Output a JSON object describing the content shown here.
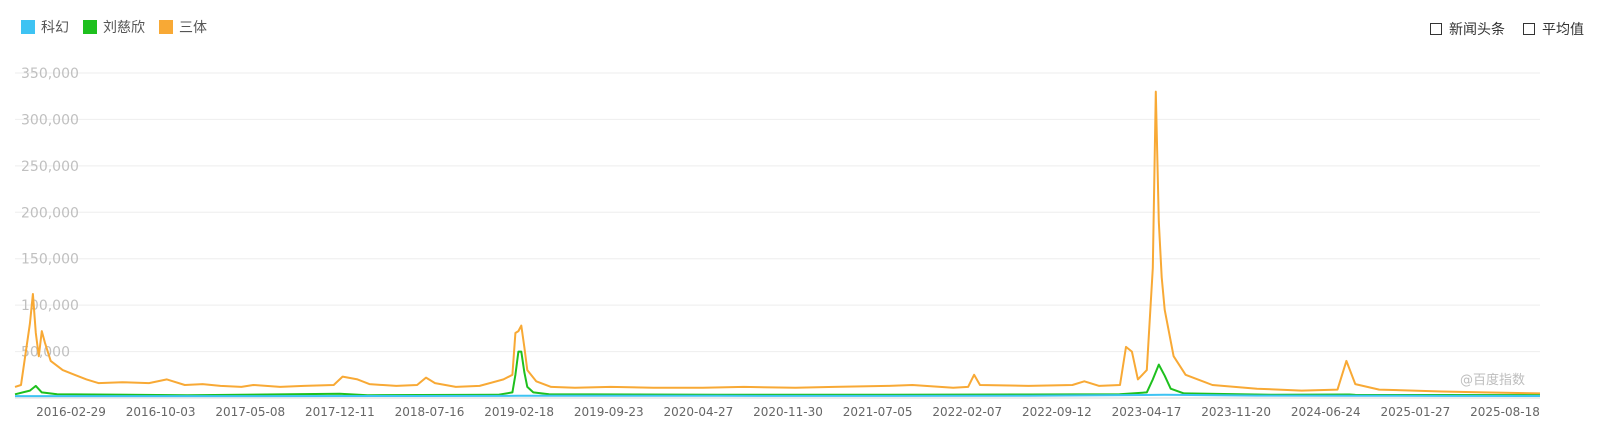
{
  "legend": [
    {
      "label": "科幻",
      "color": "#3ec3f3"
    },
    {
      "label": "刘慈欣",
      "color": "#1ec01e"
    },
    {
      "label": "三体",
      "color": "#f8a935"
    }
  ],
  "toggles": [
    {
      "label": "新闻头条",
      "checked": false
    },
    {
      "label": "平均值",
      "checked": false
    }
  ],
  "watermark": "@百度指数",
  "chart_data": {
    "type": "line",
    "title": "",
    "xlabel": "",
    "ylabel": "",
    "ylim": [
      0,
      350000
    ],
    "yticks": [
      0,
      50000,
      100000,
      150000,
      200000,
      250000,
      300000,
      350000
    ],
    "ytick_labels": [
      "",
      "50,000",
      "100,000",
      "150,000",
      "200,000",
      "250,000",
      "300,000",
      "350,000"
    ],
    "x_range": [
      "2015-11-23",
      "2025-09-15"
    ],
    "xtick_labels": [
      "2016-02-29",
      "2016-10-03",
      "2017-05-08",
      "2017-12-11",
      "2018-07-16",
      "2019-02-18",
      "2019-09-23",
      "2020-04-27",
      "2020-11-30",
      "2021-07-05",
      "2022-02-07",
      "2022-09-12",
      "2023-04-17",
      "2023-11-20",
      "2024-06-24",
      "2025-01-27",
      "2025-08-18"
    ],
    "grid": "horizontal",
    "legend_position": "top-left",
    "series": [
      {
        "name": "科幻",
        "color": "#3ec3f3",
        "points": [
          [
            "2015-11-23",
            2000
          ],
          [
            "2016-06-01",
            2000
          ],
          [
            "2017-06-01",
            2100
          ],
          [
            "2018-06-01",
            2200
          ],
          [
            "2019-02-18",
            2400
          ],
          [
            "2019-09-23",
            2500
          ],
          [
            "2020-06-01",
            2400
          ],
          [
            "2021-06-01",
            2300
          ],
          [
            "2022-06-01",
            2400
          ],
          [
            "2023-04-17",
            3500
          ],
          [
            "2023-11-20",
            2600
          ],
          [
            "2024-06-24",
            2500
          ],
          [
            "2025-01-27",
            2300
          ],
          [
            "2025-09-15",
            2200
          ]
        ]
      },
      {
        "name": "刘慈欣",
        "color": "#1ec01e",
        "points": [
          [
            "2015-11-23",
            4000
          ],
          [
            "2015-12-28",
            8000
          ],
          [
            "2016-01-11",
            13000
          ],
          [
            "2016-01-25",
            6000
          ],
          [
            "2016-03-01",
            4000
          ],
          [
            "2017-01-01",
            3000
          ],
          [
            "2017-12-25",
            4500
          ],
          [
            "2018-03-01",
            3000
          ],
          [
            "2019-01-01",
            3500
          ],
          [
            "2019-02-04",
            6000
          ],
          [
            "2019-02-11",
            25000
          ],
          [
            "2019-02-18",
            50000
          ],
          [
            "2019-02-25",
            50000
          ],
          [
            "2019-03-04",
            28000
          ],
          [
            "2019-03-11",
            12000
          ],
          [
            "2019-03-25",
            6000
          ],
          [
            "2019-05-01",
            4000
          ],
          [
            "2020-06-01",
            3500
          ],
          [
            "2021-06-01",
            3500
          ],
          [
            "2022-06-01",
            3800
          ],
          [
            "2023-01-01",
            4000
          ],
          [
            "2023-03-06",
            6000
          ],
          [
            "2023-03-20",
            20000
          ],
          [
            "2023-04-03",
            36000
          ],
          [
            "2023-04-17",
            24000
          ],
          [
            "2023-05-01",
            10000
          ],
          [
            "2023-06-01",
            5000
          ],
          [
            "2024-01-01",
            3500
          ],
          [
            "2024-06-24",
            3800
          ],
          [
            "2024-07-08",
            3300
          ],
          [
            "2025-01-27",
            3200
          ],
          [
            "2025-09-15",
            3000
          ]
        ]
      },
      {
        "name": "三体",
        "color": "#f8a935",
        "points": [
          [
            "2015-11-23",
            12000
          ],
          [
            "2015-12-07",
            14000
          ],
          [
            "2015-12-28",
            80000
          ],
          [
            "2016-01-04",
            112000
          ],
          [
            "2016-01-11",
            70000
          ],
          [
            "2016-01-18",
            45000
          ],
          [
            "2016-01-25",
            72000
          ],
          [
            "2016-02-01",
            60000
          ],
          [
            "2016-02-15",
            40000
          ],
          [
            "2016-03-14",
            30000
          ],
          [
            "2016-04-11",
            25000
          ],
          [
            "2016-05-09",
            20000
          ],
          [
            "2016-06-06",
            16000
          ],
          [
            "2016-08-01",
            17000
          ],
          [
            "2016-10-03",
            16000
          ],
          [
            "2016-11-14",
            20000
          ],
          [
            "2016-12-26",
            14000
          ],
          [
            "2017-02-06",
            15000
          ],
          [
            "2017-03-20",
            13000
          ],
          [
            "2017-05-08",
            12000
          ],
          [
            "2017-06-05",
            14000
          ],
          [
            "2017-08-07",
            12000
          ],
          [
            "2017-10-02",
            13000
          ],
          [
            "2017-12-11",
            14000
          ],
          [
            "2018-01-01",
            23000
          ],
          [
            "2018-02-05",
            20000
          ],
          [
            "2018-03-05",
            15000
          ],
          [
            "2018-05-07",
            13000
          ],
          [
            "2018-06-25",
            14000
          ],
          [
            "2018-07-16",
            22000
          ],
          [
            "2018-08-06",
            16000
          ],
          [
            "2018-09-24",
            12000
          ],
          [
            "2018-11-19",
            13000
          ],
          [
            "2019-01-14",
            20000
          ],
          [
            "2019-02-04",
            25000
          ],
          [
            "2019-02-11",
            70000
          ],
          [
            "2019-02-18",
            72000
          ],
          [
            "2019-02-25",
            78000
          ],
          [
            "2019-03-04",
            55000
          ],
          [
            "2019-03-11",
            30000
          ],
          [
            "2019-04-01",
            18000
          ],
          [
            "2019-05-06",
            12000
          ],
          [
            "2019-07-01",
            11000
          ],
          [
            "2019-09-23",
            12000
          ],
          [
            "2020-01-01",
            11000
          ],
          [
            "2020-04-27",
            11000
          ],
          [
            "2020-08-01",
            12000
          ],
          [
            "2020-11-30",
            11000
          ],
          [
            "2021-03-01",
            12000
          ],
          [
            "2021-07-05",
            13000
          ],
          [
            "2021-09-01",
            14000
          ],
          [
            "2021-12-06",
            11000
          ],
          [
            "2022-01-10",
            12000
          ],
          [
            "2022-01-24",
            25000
          ],
          [
            "2022-02-07",
            14000
          ],
          [
            "2022-06-01",
            13000
          ],
          [
            "2022-09-12",
            14000
          ],
          [
            "2022-10-10",
            18000
          ],
          [
            "2022-11-14",
            13000
          ],
          [
            "2023-01-02",
            14000
          ],
          [
            "2023-01-16",
            55000
          ],
          [
            "2023-01-30",
            50000
          ],
          [
            "2023-02-13",
            20000
          ],
          [
            "2023-03-06",
            30000
          ],
          [
            "2023-03-20",
            140000
          ],
          [
            "2023-03-27",
            330000
          ],
          [
            "2023-04-03",
            190000
          ],
          [
            "2023-04-10",
            130000
          ],
          [
            "2023-04-17",
            95000
          ],
          [
            "2023-05-08",
            45000
          ],
          [
            "2023-06-05",
            25000
          ],
          [
            "2023-08-07",
            14000
          ],
          [
            "2023-11-20",
            10000
          ],
          [
            "2024-03-04",
            8000
          ],
          [
            "2024-05-27",
            9000
          ],
          [
            "2024-06-17",
            40000
          ],
          [
            "2024-07-08",
            15000
          ],
          [
            "2024-09-02",
            9000
          ],
          [
            "2025-01-27",
            7000
          ],
          [
            "2025-05-05",
            6000
          ],
          [
            "2025-09-15",
            5000
          ]
        ]
      }
    ]
  }
}
